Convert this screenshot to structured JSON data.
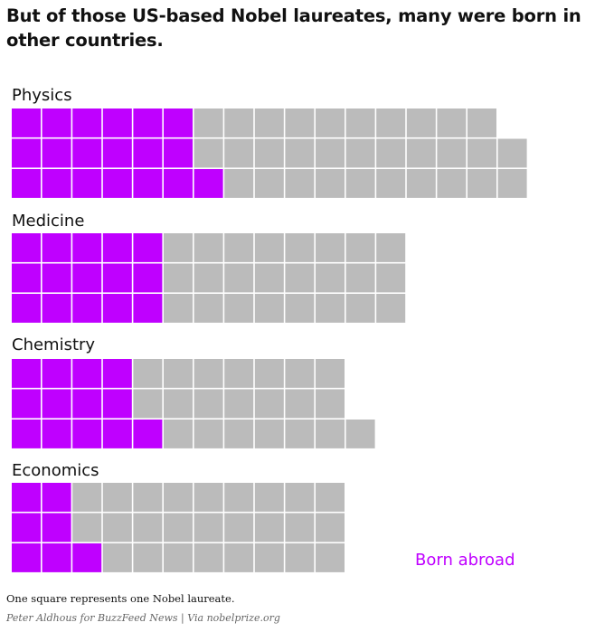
{
  "title": "But of those US-based Nobel laureates, many were born in other countries.",
  "legend": {
    "label": "Born abroad",
    "color": "#bf00ff"
  },
  "colors": {
    "abroad": "#bf00ff",
    "other": "#bbbbbb"
  },
  "note": "One square represents one Nobel laureate.",
  "credit": {
    "author": "Peter Aldhous for BuzzFeed News",
    "separator": " | Via ",
    "source": "nobelprize.org"
  },
  "chart_data": {
    "type": "waffle",
    "unit": "One square represents one Nobel laureate.",
    "categories": [
      "Physics",
      "Medicine",
      "Chemistry",
      "Economics"
    ],
    "groups": [
      {
        "name": "Physics",
        "rows": [
          {
            "abroad": 6,
            "total": 16
          },
          {
            "abroad": 6,
            "total": 17
          },
          {
            "abroad": 7,
            "total": 17
          }
        ]
      },
      {
        "name": "Medicine",
        "rows": [
          {
            "abroad": 5,
            "total": 13
          },
          {
            "abroad": 5,
            "total": 13
          },
          {
            "abroad": 5,
            "total": 13
          }
        ]
      },
      {
        "name": "Chemistry",
        "rows": [
          {
            "abroad": 4,
            "total": 11
          },
          {
            "abroad": 4,
            "total": 11
          },
          {
            "abroad": 5,
            "total": 12
          }
        ]
      },
      {
        "name": "Economics",
        "rows": [
          {
            "abroad": 2,
            "total": 11
          },
          {
            "abroad": 2,
            "total": 11
          },
          {
            "abroad": 3,
            "total": 11
          }
        ]
      }
    ],
    "series": [
      {
        "name": "Born abroad",
        "values": [
          19,
          15,
          13,
          7
        ]
      },
      {
        "values": [
          31,
          24,
          21,
          26
        ]
      }
    ],
    "legend_position": "bottom-right"
  }
}
